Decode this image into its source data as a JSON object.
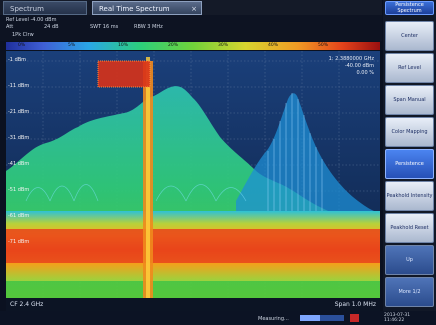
{
  "tabs": [
    {
      "label": "Spectrum"
    },
    {
      "label": "Real Time Spectrum",
      "close": "×"
    }
  ],
  "info": {
    "ref_level": "Ref Level  -4.00 dBm",
    "att": "Att",
    "att_value": "24 dB",
    "swt": "SWT  16 ms",
    "rbw": "RBW  3 MHz",
    "trace_label": "1Pk Clrw"
  },
  "colorbar_labels": [
    "0%",
    "5%",
    "10%",
    "20%",
    "30%",
    "40%",
    "50%"
  ],
  "y_ticks": [
    "-1 dBm",
    "-11 dBm",
    "-21 dBm",
    "-31 dBm",
    "-41 dBm",
    "-51 dBm",
    "-61 dBm",
    "-71 dBm"
  ],
  "marker": {
    "line1": "1: 2.3880000 GHz",
    "line2": "-40.00 dBm",
    "line3": "0.00 %"
  },
  "bottom": {
    "left": "CF 2.4 GHz",
    "right": "Span 1.0 MHz"
  },
  "status": {
    "measuring": "Measuring...",
    "progress": 0.45,
    "date": "2013-07-31",
    "time": "11:46:22"
  },
  "softkeys": [
    {
      "label": "Persistence Spectrum",
      "state": "top"
    },
    {
      "label": "Center",
      "state": "normal"
    },
    {
      "label": "Ref Level",
      "state": "normal"
    },
    {
      "label": "Span Manual",
      "state": "normal"
    },
    {
      "label": "Color Mapping",
      "state": "normal"
    },
    {
      "label": "Persistence",
      "state": "active"
    },
    {
      "label": "Peakhold Intensity",
      "state": "normal"
    },
    {
      "label": "Peakhold Reset",
      "state": "normal"
    },
    {
      "label": "Up",
      "state": "dim"
    },
    {
      "label": "More 1/2",
      "state": "dim"
    }
  ],
  "colors": {
    "screen": "#0b1120",
    "softkey_active": "#2f61cf",
    "softkey_top": "#1d3f9a"
  }
}
